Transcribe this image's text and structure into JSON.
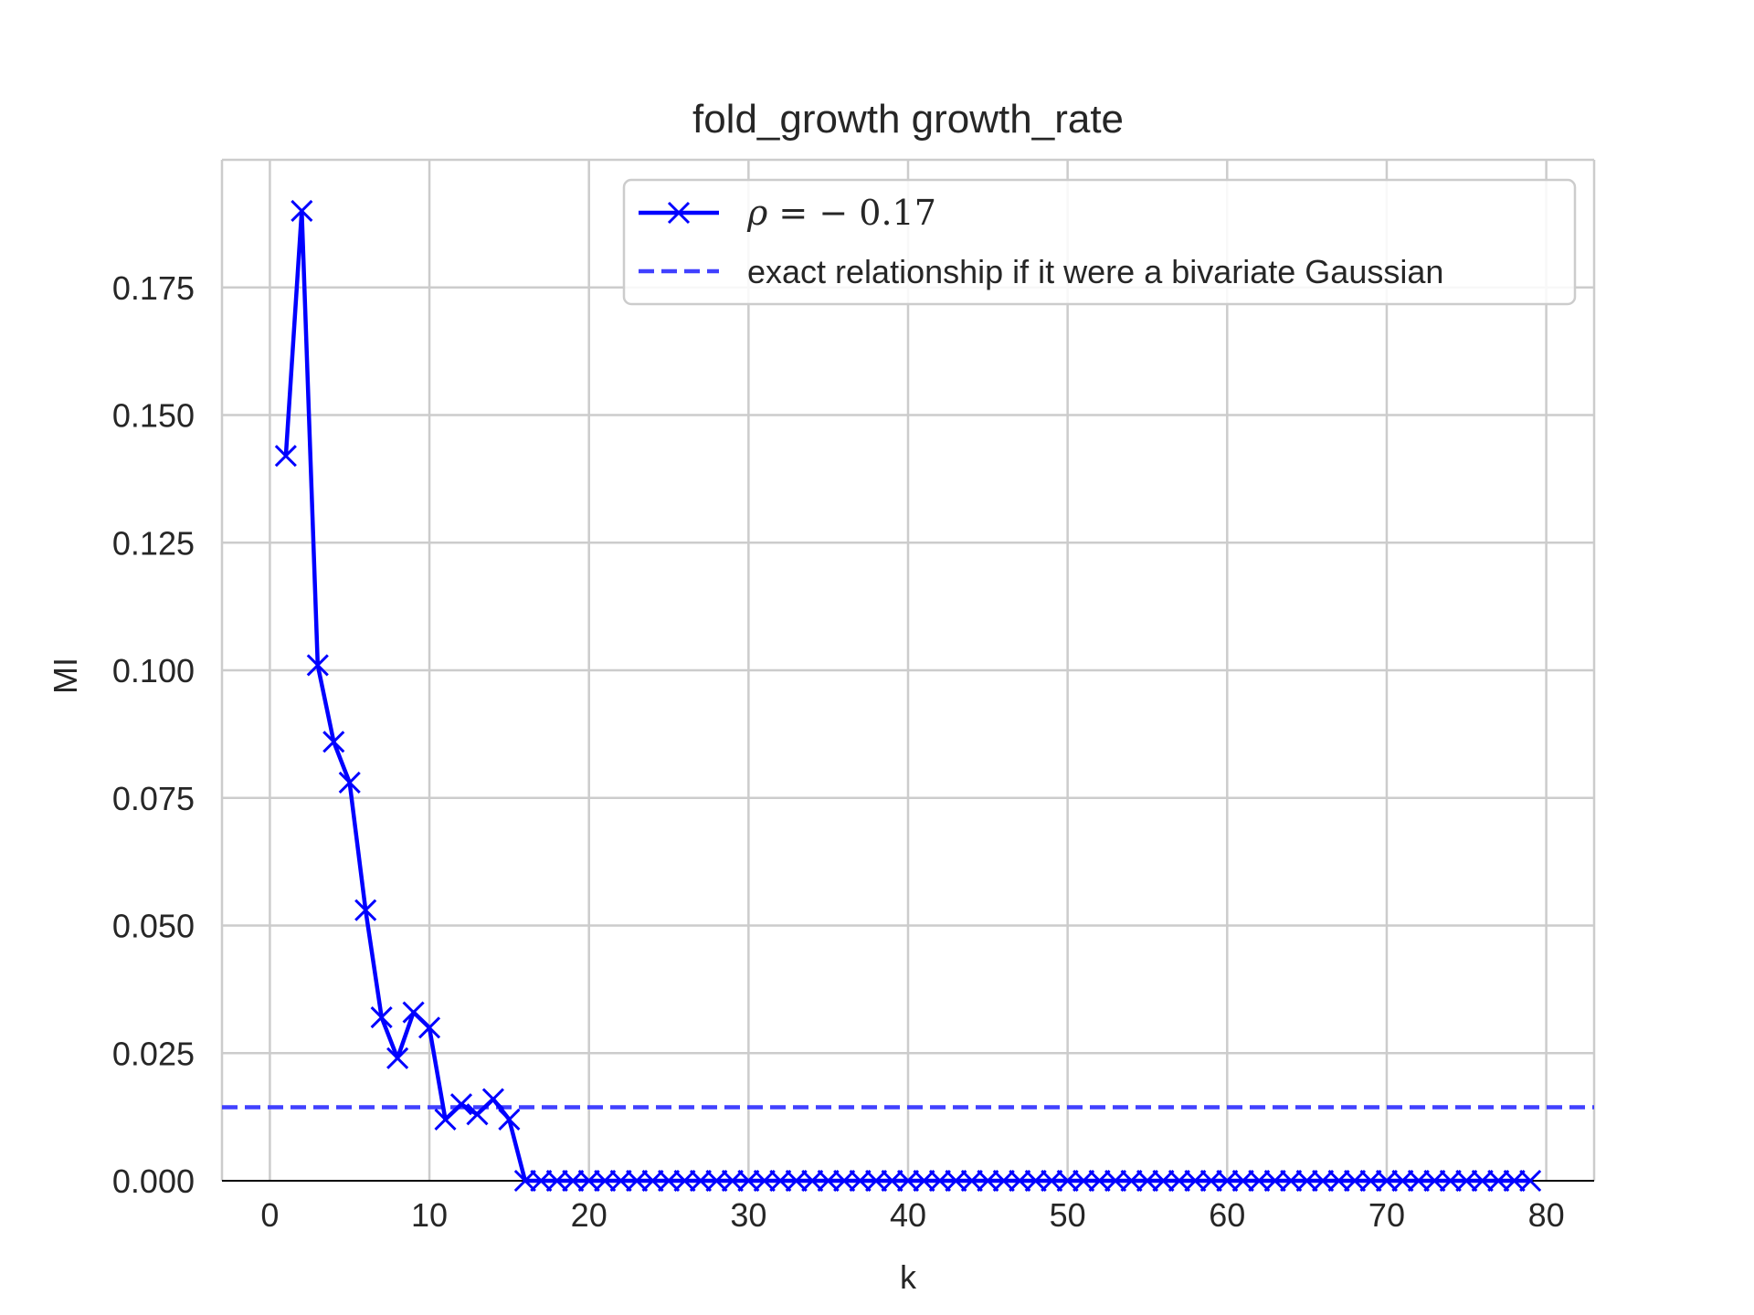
{
  "chart_data": {
    "type": "line",
    "title": "fold_growth growth_rate",
    "xlabel": "k",
    "ylabel": "MI",
    "xlim": [
      -3,
      83
    ],
    "ylim": [
      0,
      0.2
    ],
    "x_ticks": [
      0,
      10,
      20,
      30,
      40,
      50,
      60,
      70,
      80
    ],
    "x_tick_labels": [
      "0",
      "10",
      "20",
      "30",
      "40",
      "50",
      "60",
      "70",
      "80"
    ],
    "y_ticks": [
      0,
      0.025,
      0.05,
      0.075,
      0.1,
      0.125,
      0.15,
      0.175
    ],
    "y_tick_labels": [
      "0.000",
      "0.025",
      "0.050",
      "0.075",
      "0.100",
      "0.125",
      "0.150",
      "0.175"
    ],
    "grid": true,
    "legend_position": "top-right",
    "series": [
      {
        "name": "ρ = − 0.17",
        "name_symbol": "ρ",
        "name_rest": " = − 0.17",
        "style": "solid",
        "marker": "x",
        "color": "#0000ff",
        "x": [
          1,
          2,
          3,
          4,
          5,
          6,
          7,
          8,
          9,
          10,
          11,
          12,
          13,
          14,
          15,
          16,
          17,
          18,
          19,
          20,
          21,
          22,
          23,
          24,
          25,
          26,
          27,
          28,
          29,
          30,
          31,
          32,
          33,
          34,
          35,
          36,
          37,
          38,
          39,
          40,
          41,
          42,
          43,
          44,
          45,
          46,
          47,
          48,
          49,
          50,
          51,
          52,
          53,
          54,
          55,
          56,
          57,
          58,
          59,
          60,
          61,
          62,
          63,
          64,
          65,
          66,
          67,
          68,
          69,
          70,
          71,
          72,
          73,
          74,
          75,
          76,
          77,
          78,
          79
        ],
        "y": [
          0.142,
          0.19,
          0.101,
          0.086,
          0.078,
          0.053,
          0.032,
          0.024,
          0.033,
          0.03,
          0.012,
          0.015,
          0.013,
          0.016,
          0.012,
          0,
          0,
          0,
          0,
          0,
          0,
          0,
          0,
          0,
          0,
          0,
          0,
          0,
          0,
          0,
          0,
          0,
          0,
          0,
          0,
          0,
          0,
          0,
          0,
          0,
          0,
          0,
          0,
          0,
          0,
          0,
          0,
          0,
          0,
          0,
          0,
          0,
          0,
          0,
          0,
          0,
          0,
          0,
          0,
          0,
          0,
          0,
          0,
          0,
          0,
          0,
          0,
          0,
          0,
          0,
          0,
          0,
          0,
          0,
          0,
          0,
          0,
          0,
          0
        ]
      },
      {
        "name": "exact relationship if it were a bivariate Gaussian",
        "style": "dashed",
        "color": "#4040ff",
        "y_constant": 0.0144
      }
    ]
  }
}
